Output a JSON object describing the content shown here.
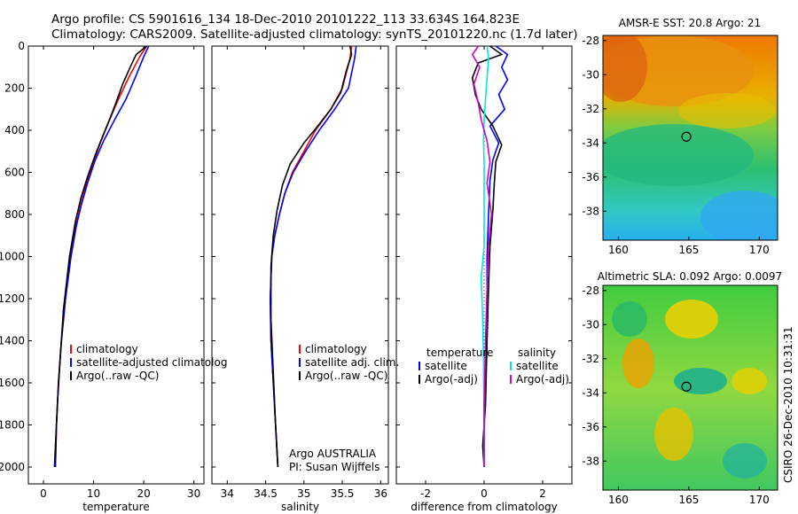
{
  "header": {
    "line1": "Argo profile: CS 5901616_134 18-Dec-2010 20101222_113 33.634S 164.823E",
    "line2": "Climatology: CARS2009. Satellite-adjusted climatology: synTS_20101220.nc (1.7d later)"
  },
  "side_label": "CSIRO 26-Dec-2010 10:31:31",
  "chart_data": [
    {
      "type": "line",
      "xlabel": "temperature",
      "xlim": [
        -3,
        32
      ],
      "ylim": [
        0,
        2080
      ],
      "xticks": [
        0,
        10,
        20,
        30
      ],
      "yticks": [
        0,
        200,
        400,
        600,
        800,
        1000,
        1200,
        1400,
        1600,
        1800,
        2000
      ],
      "legend": [
        "climatology",
        "satellite-adjusted climatolog",
        "Argo(..raw -QC)"
      ],
      "series": [
        {
          "name": "climatology",
          "color": "#ff0000",
          "x": [
            20.6,
            19.2,
            17.0,
            15.0,
            13.2,
            11.5,
            10.0,
            8.6,
            7.5,
            6.5,
            5.4,
            4.4,
            3.6,
            3.0,
            2.6,
            2.4
          ],
          "y": [
            0,
            50,
            150,
            250,
            350,
            450,
            550,
            650,
            750,
            850,
            1000,
            1200,
            1400,
            1600,
            1800,
            2000
          ]
        },
        {
          "name": "satellite-adjusted climatolog",
          "color": "#0000ff",
          "x": [
            21.0,
            20.0,
            18.3,
            16.5,
            14.2,
            12.0,
            10.2,
            8.8,
            7.6,
            6.6,
            5.5,
            4.4,
            3.6,
            3.0,
            2.6,
            2.4
          ],
          "y": [
            0,
            50,
            150,
            250,
            350,
            450,
            550,
            650,
            750,
            850,
            1000,
            1200,
            1400,
            1600,
            1800,
            2000
          ]
        },
        {
          "name": "Argo(..raw -QC)",
          "color": "#000000",
          "x": [
            20.6,
            18.5,
            17.3,
            15.8,
            14.6,
            13.5,
            11.8,
            10.3,
            8.8,
            7.5,
            6.4,
            5.2,
            4.0,
            3.3,
            2.8,
            2.4,
            2.2
          ],
          "y": [
            0,
            40,
            100,
            180,
            260,
            330,
            430,
            520,
            620,
            720,
            830,
            1000,
            1250,
            1500,
            1700,
            1900,
            2000
          ]
        }
      ]
    },
    {
      "type": "line",
      "xlabel": "salinity",
      "xlim": [
        33.8,
        36.1
      ],
      "ylim": [
        0,
        2080
      ],
      "xticks": [
        34,
        34.5,
        35,
        35.5,
        36
      ],
      "legend": [
        "climatology",
        "satellite adj. clim.",
        "Argo(..raw -QC)"
      ],
      "annotation": [
        "Argo AUSTRALIA",
        "PI: Susan Wijffels"
      ],
      "series": [
        {
          "name": "climatology",
          "color": "#ff0000",
          "x": [
            35.62,
            35.6,
            35.5,
            35.35,
            35.15,
            35.0,
            34.85,
            34.75,
            34.68,
            34.62,
            34.58,
            34.56,
            34.57,
            34.6,
            34.63,
            34.66
          ],
          "y": [
            0,
            60,
            200,
            300,
            400,
            500,
            600,
            700,
            800,
            900,
            1000,
            1200,
            1400,
            1600,
            1800,
            2000
          ]
        },
        {
          "name": "satellite adj. clim.",
          "color": "#0000ff",
          "x": [
            35.68,
            35.66,
            35.58,
            35.4,
            35.2,
            35.02,
            34.86,
            34.75,
            34.68,
            34.62,
            34.58,
            34.56,
            34.57,
            34.6,
            34.63,
            34.66
          ],
          "y": [
            0,
            60,
            200,
            300,
            400,
            500,
            600,
            700,
            800,
            900,
            1000,
            1200,
            1400,
            1600,
            1800,
            2000
          ]
        },
        {
          "name": "Argo(..raw -QC)",
          "color": "#000000",
          "x": [
            35.6,
            35.62,
            35.55,
            35.48,
            35.35,
            35.18,
            35.0,
            34.82,
            34.72,
            34.65,
            34.6,
            34.57,
            34.57,
            34.6,
            34.63,
            34.66
          ],
          "y": [
            0,
            40,
            120,
            220,
            300,
            380,
            460,
            560,
            660,
            780,
            900,
            1050,
            1300,
            1550,
            1800,
            2000
          ]
        }
      ]
    },
    {
      "type": "line",
      "xlabel": "difference from climatology",
      "xlim": [
        -3,
        3
      ],
      "ylim": [
        0,
        2080
      ],
      "xticks": [
        -2,
        0,
        2
      ],
      "legend": [
        "temperature",
        "satellite",
        "Argo(-adj)",
        "salinity",
        "satellite",
        "Argo(-adj)"
      ],
      "series": [
        {
          "name": "temperature satellite",
          "color": "#0000ff",
          "x": [
            0.4,
            0.8,
            0.6,
            0.8,
            0.5,
            0.7,
            0.2,
            0.5,
            0.3,
            0.2,
            0.15,
            0.1,
            0.1,
            0.05,
            0.0,
            0.0
          ],
          "y": [
            0,
            40,
            100,
            160,
            230,
            300,
            380,
            460,
            540,
            640,
            800,
            1000,
            1200,
            1500,
            1800,
            2000
          ]
        },
        {
          "name": "temperature Argo(-adj)",
          "color": "#000000",
          "x": [
            0.2,
            0.6,
            -0.2,
            -0.4,
            -0.3,
            -0.1,
            0.3,
            0.6,
            0.4,
            0.35,
            0.3,
            0.2,
            0.15,
            0.1,
            0.05,
            -0.05,
            0.0
          ],
          "y": [
            0,
            40,
            80,
            150,
            230,
            300,
            380,
            470,
            550,
            650,
            780,
            950,
            1150,
            1400,
            1700,
            1900,
            2000
          ]
        },
        {
          "name": "salinity satellite",
          "color": "#00e5e5",
          "x": [
            0.1,
            0.15,
            0.1,
            0.05,
            0.0,
            -0.02,
            0.0,
            0.0,
            0.0,
            0.0,
            -0.1,
            -0.05,
            -0.02,
            0.0,
            0.0
          ],
          "y": [
            0,
            60,
            150,
            250,
            350,
            450,
            550,
            650,
            800,
            950,
            1100,
            1300,
            1500,
            1800,
            2000
          ]
        },
        {
          "name": "salinity Argo(-adj)",
          "color": "#d000d0",
          "x": [
            -0.2,
            -0.4,
            -0.15,
            -0.35,
            -0.2,
            -0.1,
            0.1,
            0.2,
            0.1,
            0.25,
            0.15,
            0.1,
            0.05,
            0.0,
            0.0
          ],
          "y": [
            0,
            40,
            100,
            180,
            270,
            350,
            450,
            550,
            650,
            800,
            950,
            1150,
            1400,
            1700,
            2000
          ]
        }
      ]
    },
    {
      "type": "heatmap",
      "title": "AMSR-E SST: 20.8 Argo: 21",
      "xticks": [
        160,
        165,
        170
      ],
      "yticks": [
        -28,
        -30,
        -32,
        -34,
        -36,
        -38
      ],
      "xlim": [
        158.9,
        171.3
      ],
      "ylim": [
        -39.7,
        -27.7
      ],
      "marker": {
        "lon": 164.823,
        "lat": -33.634
      }
    },
    {
      "type": "heatmap",
      "title": "Altimetric SLA: 0.092 Argo: 0.0097",
      "xticks": [
        160,
        165,
        170
      ],
      "yticks": [
        -28,
        -30,
        -32,
        -34,
        -36,
        -38
      ],
      "xlim": [
        158.9,
        171.3
      ],
      "ylim": [
        -39.7,
        -27.7
      ],
      "marker": {
        "lon": 164.823,
        "lat": -33.634
      }
    }
  ]
}
